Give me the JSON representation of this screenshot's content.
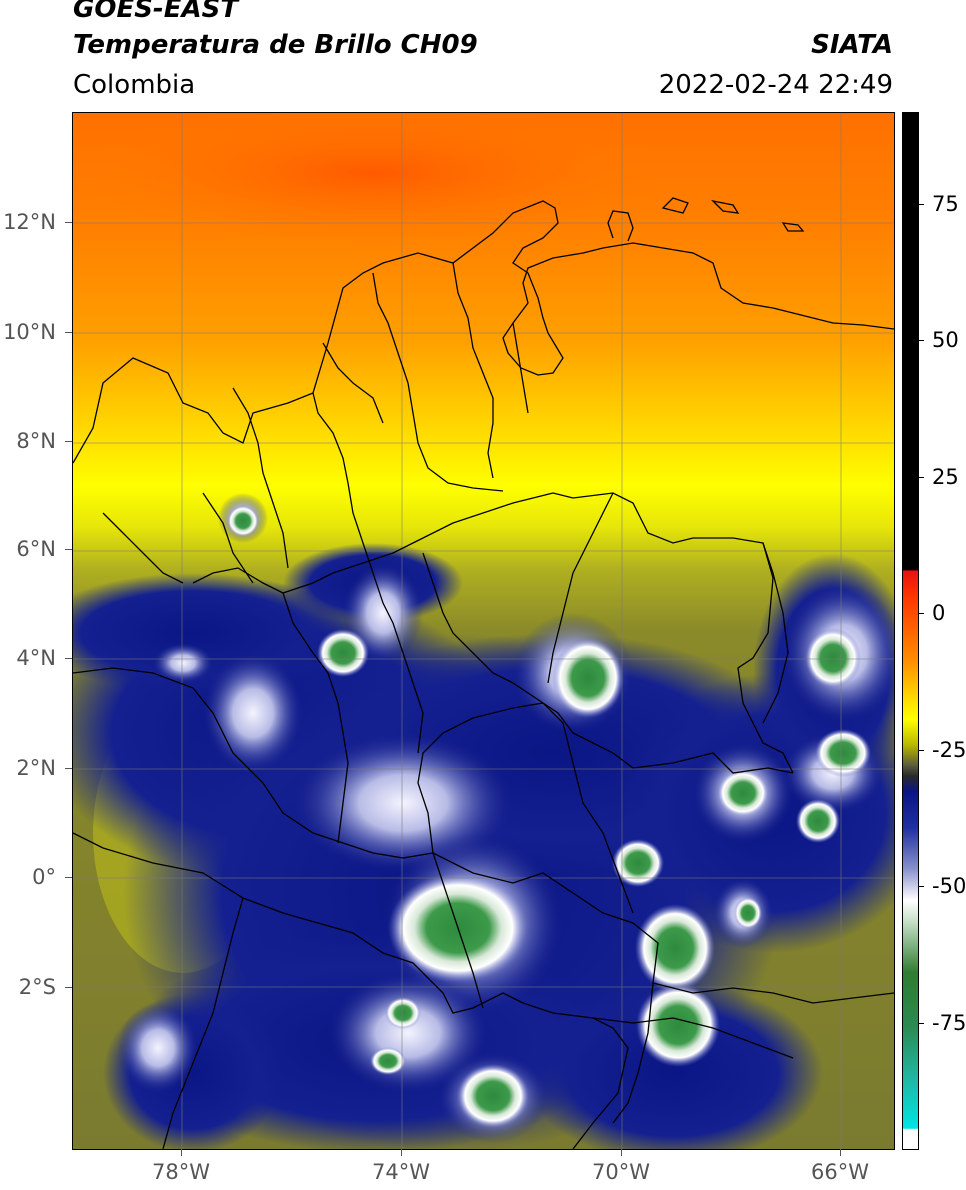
{
  "header": {
    "satellite": "GOES-EAST",
    "product": "Temperatura de Brillo CH09",
    "organization": "SIATA",
    "region": "Colombia",
    "datetime": "2022-02-24 22:49"
  },
  "map": {
    "lat_ticks": [
      "12°N",
      "10°N",
      "8°N",
      "6°N",
      "4°N",
      "2°N",
      "0°",
      "2°S"
    ],
    "lon_ticks": [
      "78°W",
      "74°W",
      "70°W",
      "66°W"
    ],
    "lat_values": [
      12,
      10,
      8,
      6,
      4,
      2,
      0,
      -2
    ],
    "lon_values": [
      -78,
      -74,
      -70,
      -66
    ],
    "extent": {
      "lon": [
        -80.2,
        -65.3
      ],
      "lat": [
        -4.9,
        14.0
      ]
    }
  },
  "colorbar": {
    "tick_labels": [
      "75",
      "50",
      "25",
      "0",
      "-25",
      "-50",
      "-75"
    ],
    "tick_values": [
      75,
      50,
      25,
      0,
      -25,
      -50,
      -75
    ],
    "range": [
      -100,
      90
    ],
    "colors": {
      "black": "#000000",
      "red": "#e8120e",
      "orange": "#ff7a00",
      "yellow": "#ffff00",
      "olive": "#8a8a1a",
      "gray": "#4a4a4a",
      "navy": "#0a1585",
      "white": "#ffffff",
      "green": "#2e7d32",
      "cyan": "#00e5e5"
    }
  }
}
